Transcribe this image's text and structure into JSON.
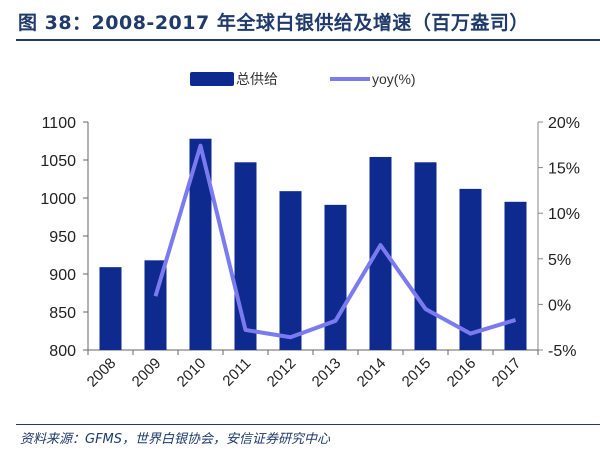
{
  "title": "图 38：2008-2017 年全球白银供给及增速（百万盎司）",
  "source": "资料来源：GFMS，世界白银协会，安信证券研究中心",
  "chart_data": {
    "type": "bar",
    "title": "2008-2017 年全球白银供给及增速（百万盎司）",
    "categories": [
      "2008",
      "2009",
      "2010",
      "2011",
      "2012",
      "2013",
      "2014",
      "2015",
      "2016",
      "2017"
    ],
    "series": [
      {
        "name": "总供给",
        "type": "bar",
        "axis": "left",
        "color": "#0f2a8f",
        "values": [
          909,
          918,
          1078,
          1047,
          1009,
          991,
          1054,
          1047,
          1012,
          995
        ]
      },
      {
        "name": "yoy(%)",
        "type": "line",
        "axis": "right",
        "color": "#7b7bf0",
        "values": [
          null,
          0.9,
          17.4,
          -2.8,
          -3.6,
          -1.8,
          6.5,
          -0.5,
          -3.2,
          -1.7
        ]
      }
    ],
    "ylim": [
      800,
      1100
    ],
    "yticks": [
      "800",
      "850",
      "900",
      "950",
      "1000",
      "1050",
      "1100"
    ],
    "y2lim": [
      -5,
      20
    ],
    "y2ticks": [
      "-5%",
      "0%",
      "5%",
      "10%",
      "15%",
      "20%"
    ],
    "legend": "top-center",
    "grid": false
  }
}
